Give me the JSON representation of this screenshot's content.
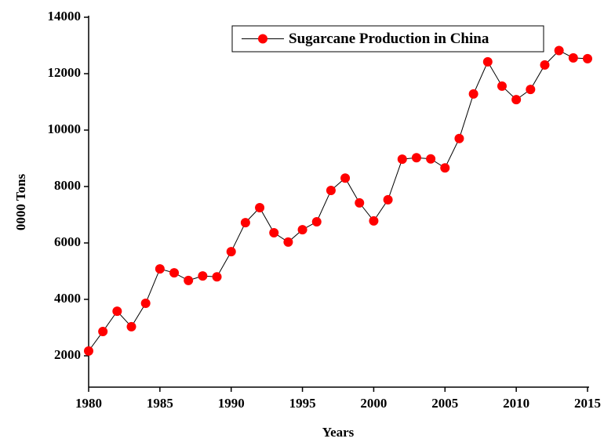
{
  "chart_data": {
    "type": "line",
    "legend_label": "Sugarcane Production in China",
    "x_label": "Years",
    "y_label": "0000 Tons",
    "x": [
      1980,
      1981,
      1982,
      1983,
      1984,
      1985,
      1986,
      1987,
      1988,
      1989,
      1990,
      1991,
      1992,
      1993,
      1994,
      1995,
      1996,
      1997,
      1998,
      1999,
      2000,
      2001,
      2002,
      2003,
      2004,
      2005,
      2006,
      2007,
      2008,
      2009,
      2010,
      2011,
      2012,
      2013,
      2014,
      2015
    ],
    "series": [
      {
        "name": "Sugarcane Production in China",
        "color": "#ff0000",
        "line_color": "#000000",
        "values": [
          2170,
          2860,
          3580,
          3030,
          3860,
          5080,
          4940,
          4670,
          4830,
          4800,
          5690,
          6720,
          7250,
          6360,
          6030,
          6470,
          6750,
          7860,
          8300,
          7420,
          6780,
          7530,
          8970,
          9020,
          8980,
          8660,
          9700,
          11280,
          12420,
          11560,
          11080,
          11440,
          12310,
          12820,
          12560,
          12530
        ]
      }
    ],
    "xlim": [
      1980,
      2015
    ],
    "xticks": [
      1980,
      1985,
      1990,
      1995,
      2000,
      2005,
      2010,
      2015
    ],
    "ylim": [
      1000,
      14000
    ],
    "yticks": [
      2000,
      4000,
      6000,
      8000,
      10000,
      12000,
      14000
    ],
    "legend": "upper right"
  }
}
